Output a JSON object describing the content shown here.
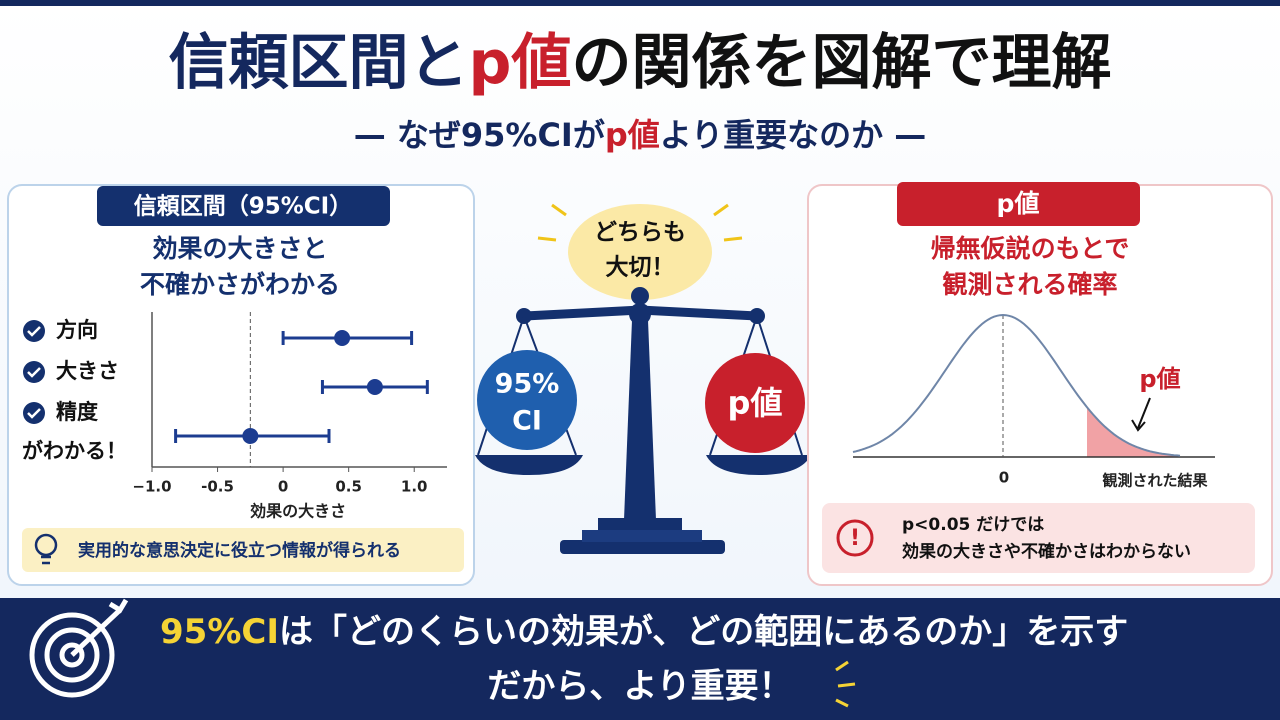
{
  "header": {
    "title": [
      "信頼区間と",
      "p値",
      "の関係を図解で理解"
    ],
    "subtitle": [
      "— なぜ95%CIが",
      "p値",
      "より重要なのか —"
    ]
  },
  "left_panel": {
    "tag": "信頼区間（95%CI）",
    "heading": [
      "効果の大きさと",
      "不確かさがわかる"
    ],
    "checklist": [
      "方向",
      "大きさ",
      "精度"
    ],
    "checklist_footer": "がわかる！",
    "note": "実用的な意思決定に役立つ情報が得られる"
  },
  "forest_plot": {
    "xlim": [
      -1.0,
      1.25
    ],
    "xticks": [
      {
        "value": -1,
        "label": "−1.0"
      },
      -0.5,
      0,
      0.5,
      {
        "value": 1,
        "label": "1.0"
      }
    ],
    "xlabel": "効果の大きさ",
    "reference_line": -0.25,
    "estimates": [
      0.45,
      0.7,
      -0.25
    ],
    "lower": [
      0.0,
      0.3,
      -0.82
    ],
    "upper": [
      0.98,
      1.1,
      0.35
    ]
  },
  "center": {
    "bubble": [
      "どちらも",
      "大切！"
    ],
    "left_weight": [
      "95%",
      "CI"
    ],
    "right_weight": "p値"
  },
  "right_panel": {
    "tag": "p値",
    "heading": [
      "帰無仮説のもとで",
      "観測される確率"
    ],
    "curve_label": "p値",
    "zero_label": "0",
    "observed_label": "観測された結果",
    "warning": [
      "p<0.05 だけでは",
      "効果の大きさや不確かさはわからない"
    ]
  },
  "footer": {
    "line1": [
      "95%CI",
      "は「どのくらいの効果が、どの範囲にあるのか」を示す"
    ],
    "line2": "だから、より重要！"
  }
}
